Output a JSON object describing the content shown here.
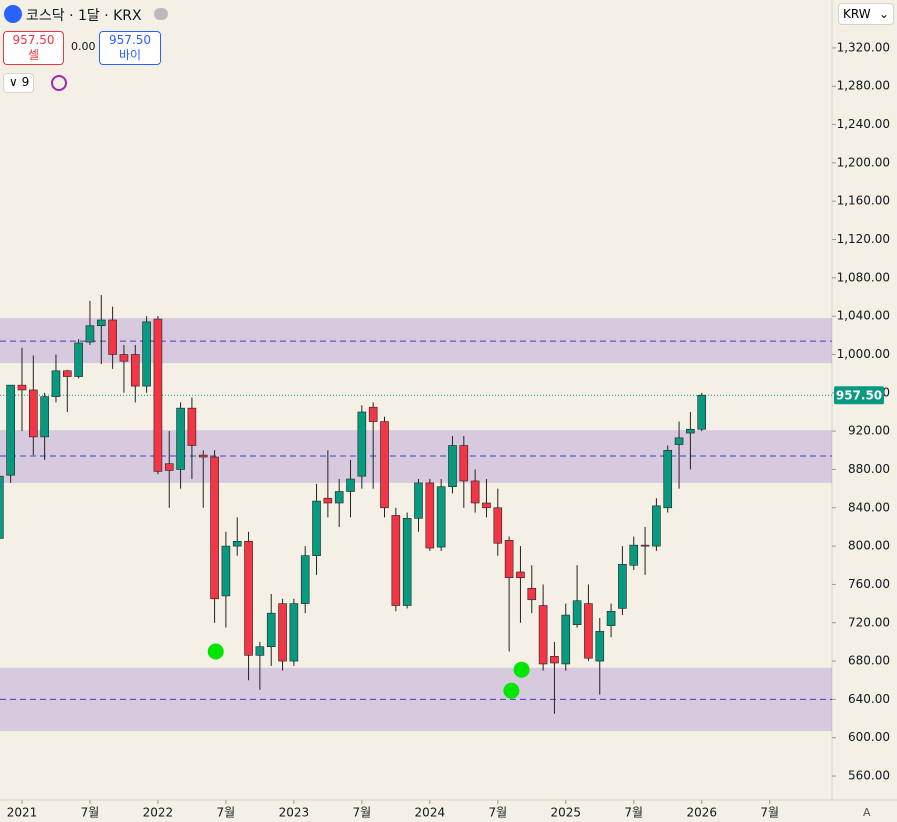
{
  "header": {
    "title": "코스닥 · 1달 · KRX",
    "sell_price": "957.50",
    "sell_label": "셀",
    "spread": "0.00",
    "buy_price": "957.50",
    "buy_label": "바이",
    "indicator_count": "9",
    "currency": "KRW",
    "auto_label": "A"
  },
  "chart_data": {
    "type": "candlestick",
    "x": [
      0,
      1,
      2,
      3,
      4,
      5,
      6,
      7,
      8,
      9,
      10,
      11,
      12,
      13,
      14,
      15,
      16,
      17,
      18,
      19,
      20,
      21,
      22,
      23,
      24,
      25,
      26,
      27,
      28,
      29,
      30,
      31,
      32,
      33,
      34,
      35,
      36,
      37,
      38,
      39,
      40,
      41,
      42,
      43,
      44,
      45,
      46,
      47,
      48,
      49,
      50,
      51,
      52,
      53,
      54,
      55,
      56,
      57,
      58,
      59,
      60,
      61,
      62
    ],
    "open": [
      808,
      874,
      968,
      963,
      914,
      956,
      983,
      977,
      1013,
      1030,
      1036,
      1000,
      1000,
      967,
      1037,
      886,
      880,
      944,
      895,
      893,
      748,
      800,
      805,
      686,
      695,
      740,
      680,
      740,
      790,
      850,
      845,
      857,
      873,
      945,
      930,
      832,
      738,
      829,
      866,
      799,
      862,
      905,
      868,
      845,
      840,
      806,
      773,
      756,
      738,
      685,
      677,
      718,
      740,
      680,
      717,
      735,
      780,
      801,
      800,
      840,
      906,
      918,
      922
    ],
    "high": [
      877,
      968,
      1007,
      999,
      960,
      1000,
      984,
      1016,
      1056,
      1062,
      1050,
      1010,
      1010,
      1040,
      1040,
      920,
      950,
      955,
      900,
      900,
      815,
      830,
      815,
      700,
      750,
      745,
      745,
      800,
      865,
      900,
      870,
      890,
      947,
      950,
      935,
      840,
      835,
      870,
      870,
      870,
      915,
      915,
      880,
      870,
      860,
      810,
      800,
      780,
      760,
      700,
      740,
      780,
      760,
      725,
      740,
      800,
      810,
      820,
      850,
      905,
      930,
      940,
      960
    ],
    "low": [
      800,
      866,
      920,
      895,
      890,
      950,
      940,
      975,
      1010,
      990,
      985,
      960,
      950,
      960,
      875,
      840,
      860,
      870,
      840,
      720,
      715,
      790,
      660,
      650,
      675,
      670,
      675,
      730,
      770,
      830,
      820,
      830,
      860,
      860,
      830,
      732,
      735,
      815,
      795,
      795,
      855,
      840,
      835,
      830,
      790,
      690,
      720,
      730,
      670,
      625,
      670,
      715,
      680,
      645,
      705,
      728,
      775,
      770,
      795,
      835,
      860,
      880,
      920
    ],
    "close": [
      873,
      968,
      963,
      914,
      956,
      983,
      977,
      1012,
      1030,
      1036,
      1000,
      993,
      967,
      1034,
      878,
      879,
      944,
      905,
      893,
      745,
      800,
      805,
      686,
      695,
      730,
      680,
      740,
      790,
      847,
      845,
      857,
      870,
      940,
      930,
      840,
      738,
      829,
      866,
      798,
      862,
      905,
      868,
      845,
      840,
      803,
      767,
      767,
      744,
      677,
      678,
      728,
      743,
      683,
      711,
      732,
      781,
      801,
      800,
      842,
      900,
      913,
      922,
      957.5
    ],
    "up_color": "#089981",
    "down_color": "#f23645",
    "xlim": [
      0.06,
      73.5
    ],
    "xticks": [
      {
        "value": 2,
        "label": "2021"
      },
      {
        "value": 8,
        "label": "7월"
      },
      {
        "value": 14,
        "label": "2022"
      },
      {
        "value": 20,
        "label": "7월"
      },
      {
        "value": 26,
        "label": "2023"
      },
      {
        "value": 32,
        "label": "7월"
      },
      {
        "value": 38,
        "label": "2024"
      },
      {
        "value": 44,
        "label": "7월"
      },
      {
        "value": 50,
        "label": "2025"
      },
      {
        "value": 56,
        "label": "7월"
      },
      {
        "value": 62,
        "label": "2026"
      },
      {
        "value": 68,
        "label": "7월"
      }
    ],
    "ylim": [
      535,
      1370
    ],
    "yticks": [
      {
        "value": 1320,
        "label": "1,320.00"
      },
      {
        "value": 1280,
        "label": "1,280.00"
      },
      {
        "value": 1240,
        "label": "1,240.00"
      },
      {
        "value": 1200,
        "label": "1,200.00"
      },
      {
        "value": 1160,
        "label": "1,160.00"
      },
      {
        "value": 1120,
        "label": "1,120.00"
      },
      {
        "value": 1080,
        "label": "1,080.00"
      },
      {
        "value": 1040,
        "label": "1,040.00"
      },
      {
        "value": 1000,
        "label": "1,000.00"
      },
      {
        "value": 960,
        "label": "960.00"
      },
      {
        "value": 920,
        "label": "920.00"
      },
      {
        "value": 880,
        "label": "880.00"
      },
      {
        "value": 840,
        "label": "840.00"
      },
      {
        "value": 800,
        "label": "800.00"
      },
      {
        "value": 760,
        "label": "760.00"
      },
      {
        "value": 720,
        "label": "720.00"
      },
      {
        "value": 680,
        "label": "680.00"
      },
      {
        "value": 640,
        "label": "640.00"
      },
      {
        "value": 600,
        "label": "600.00"
      },
      {
        "value": 560,
        "label": "560.00"
      }
    ],
    "last_price": 957.5,
    "last_price_label": "957.50",
    "last_price_color": "#089981",
    "zones": [
      {
        "from": 991,
        "to": 1038,
        "line": 1014
      },
      {
        "from": 866,
        "to": 921,
        "line": 894
      },
      {
        "from": 607,
        "to": 673,
        "line": 640
      }
    ],
    "zone_color": "#9575cd",
    "zone_line_color": "#3f3fbf",
    "markers": {
      "color": "#00e600",
      "x": [
        19.1,
        45.2,
        46.1
      ],
      "y": [
        690,
        649,
        671
      ]
    }
  }
}
